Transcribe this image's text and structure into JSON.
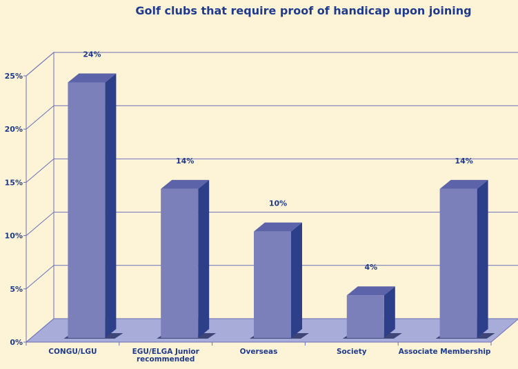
{
  "chart_data": {
    "type": "bar",
    "title": "Golf clubs that require proof of handicap upon joining",
    "categories": [
      [
        "CONGU/LGU"
      ],
      [
        "EGU/ELGA Junior",
        "recommended"
      ],
      [
        "Overseas"
      ],
      [
        "Society"
      ],
      [
        "Associate Membership"
      ]
    ],
    "values": [
      24,
      14,
      10,
      4,
      14
    ],
    "data_labels": [
      "24%",
      "14%",
      "10%",
      "4%",
      "14%"
    ],
    "ylim": [
      0,
      25
    ],
    "yticks": [
      0,
      5,
      10,
      15,
      20,
      25
    ],
    "ytick_labels": [
      "0%",
      "5%",
      "10%",
      "15%",
      "20%",
      "25%"
    ],
    "grid": true,
    "style": "3d-bar",
    "colors": {
      "background": "#fdf3d6",
      "plot_wall": "#fdf3d6",
      "floor": "#a8acd8",
      "gridline": "#6a6fb8",
      "bar_front": "#7b80bb",
      "bar_side": "#2e3f8a",
      "bar_top": "#5c63a8",
      "text": "#1e3a8c"
    }
  }
}
